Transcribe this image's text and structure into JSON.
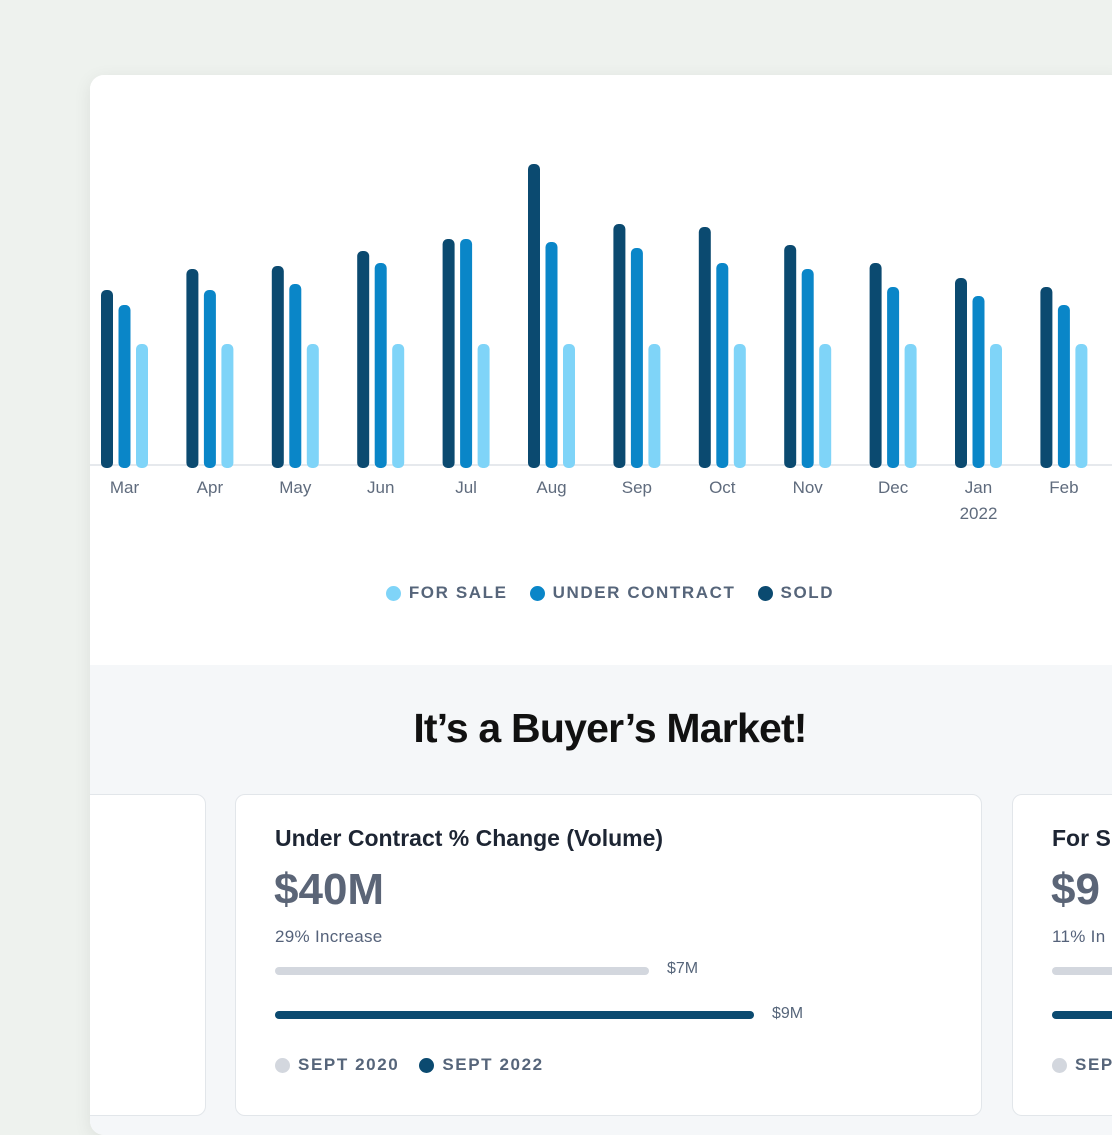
{
  "chart_data": {
    "type": "bar",
    "categories": [
      "Mar",
      "Apr",
      "May",
      "Jun",
      "Jul",
      "Aug",
      "Sep",
      "Oct",
      "Nov",
      "Dec",
      "Jan",
      "Feb"
    ],
    "category_sublabels": [
      "",
      "",
      "",
      "",
      "",
      "",
      "",
      "",
      "",
      "",
      "2022",
      ""
    ],
    "series": [
      {
        "name": "SOLD",
        "color": "#0b4a70",
        "values": [
          58,
          65,
          66,
          71,
          75,
          100,
          80,
          79,
          73,
          67,
          62,
          59
        ]
      },
      {
        "name": "UNDER CONTRACT",
        "color": "#0a86c8",
        "values": [
          53,
          58,
          60,
          67,
          75,
          74,
          72,
          67,
          65,
          59,
          56,
          53
        ]
      },
      {
        "name": "FOR SALE",
        "color": "#7fd4f8",
        "values": [
          40,
          40,
          40,
          40,
          40,
          40,
          40,
          40,
          40,
          40,
          40,
          40
        ]
      }
    ],
    "ylim": [
      0,
      100
    ],
    "grid": false,
    "legend_position": "bottom-center"
  },
  "legend": [
    {
      "label": "FOR SALE",
      "color": "#7fd4f8"
    },
    {
      "label": "UNDER CONTRACT",
      "color": "#0a86c8"
    },
    {
      "label": "SOLD",
      "color": "#0b4a70"
    }
  ],
  "headline": "It’s a Buyer’s Market!",
  "cards": {
    "mid": {
      "title": "Under Contract % Change (Volume)",
      "value": "$40M",
      "sub": "29% Increase",
      "bar1_label": "$7M",
      "bar1_fraction": 0.78,
      "bar2_label": "$9M",
      "bar2_fraction": 1.0,
      "legend1": "SEPT 2020",
      "legend2": "SEPT 2022"
    },
    "right": {
      "title": "For S",
      "value": "$9",
      "sub": "11% In",
      "legend1": "SEP"
    }
  },
  "colors": {
    "light_bar": "#d3d7de",
    "dark_bar": "#0b4a70",
    "legend_light": "#d3d7de"
  }
}
